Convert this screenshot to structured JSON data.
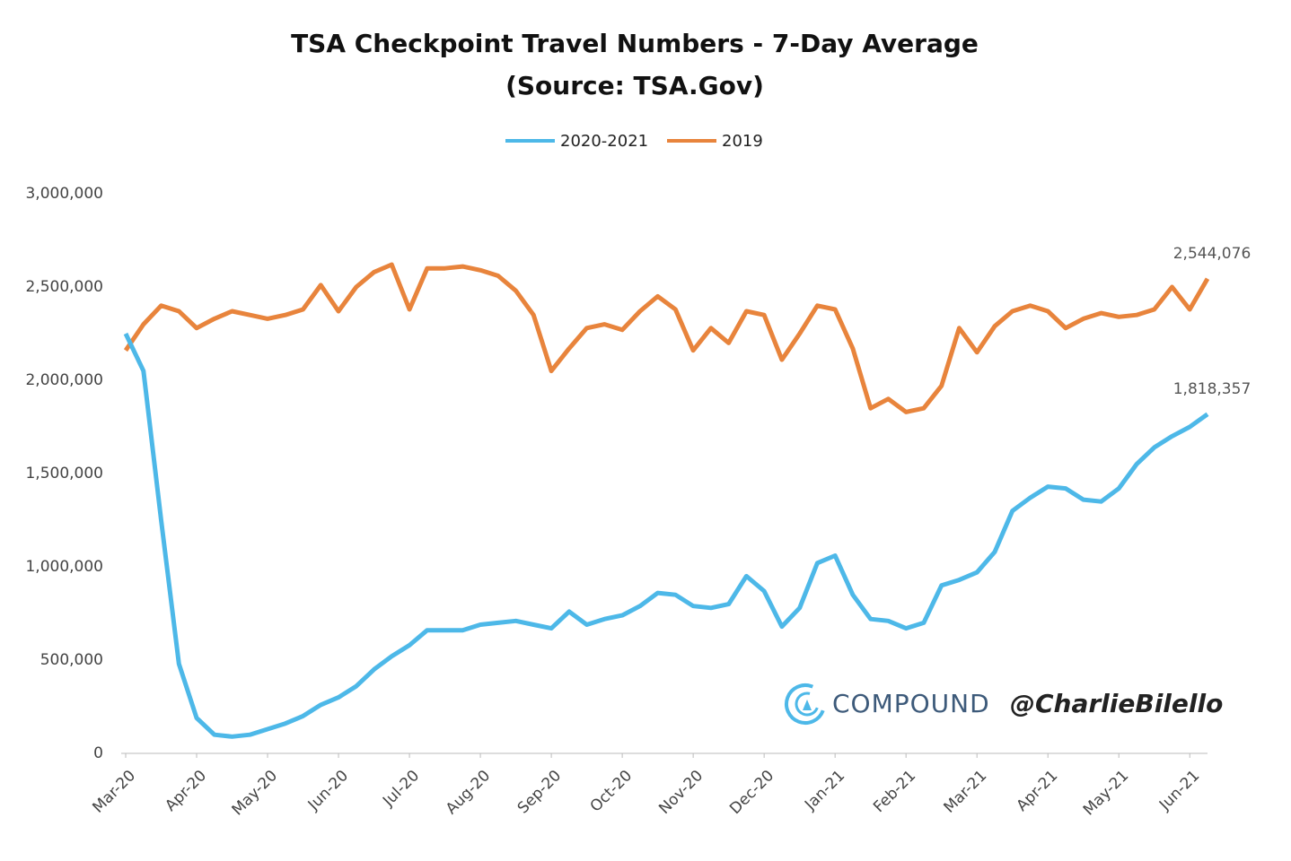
{
  "chart_data": {
    "type": "line",
    "title": [
      "TSA Checkpoint Travel Numbers - 7-Day Average",
      "(Source: TSA.Gov)"
    ],
    "categories": [
      "Mar-20",
      null,
      null,
      null,
      "Apr-20",
      null,
      null,
      null,
      "May-20",
      null,
      null,
      null,
      "Jun-20",
      null,
      null,
      null,
      "Jul-20",
      null,
      null,
      null,
      "Aug-20",
      null,
      null,
      null,
      "Sep-20",
      null,
      null,
      null,
      "Oct-20",
      null,
      null,
      null,
      "Nov-20",
      null,
      null,
      null,
      "Dec-20",
      null,
      null,
      null,
      "Jan-21",
      null,
      null,
      null,
      "Feb-21",
      null,
      null,
      null,
      "Mar-21",
      null,
      null,
      null,
      "Apr-21",
      null,
      null,
      null,
      "May-21",
      null,
      null,
      null,
      "Jun-21",
      null
    ],
    "series": [
      {
        "name": "2020-2021",
        "color": "#4db8e8",
        "values": [
          2250000,
          2050000,
          1250000,
          480000,
          190000,
          100000,
          90000,
          100000,
          130000,
          160000,
          200000,
          260000,
          300000,
          360000,
          450000,
          520000,
          580000,
          660000,
          660000,
          660000,
          690000,
          700000,
          710000,
          690000,
          670000,
          760000,
          690000,
          720000,
          740000,
          790000,
          860000,
          850000,
          790000,
          780000,
          800000,
          950000,
          870000,
          680000,
          780000,
          1020000,
          1060000,
          850000,
          720000,
          710000,
          670000,
          700000,
          900000,
          930000,
          970000,
          1080000,
          1300000,
          1370000,
          1430000,
          1420000,
          1360000,
          1350000,
          1420000,
          1550000,
          1640000,
          1700000,
          1750000,
          1818357
        ],
        "value_labels": [
          null,
          null,
          null,
          null,
          null,
          null,
          null,
          null,
          null,
          null,
          null,
          null,
          null,
          null,
          null,
          null,
          null,
          null,
          null,
          null,
          null,
          null,
          null,
          null,
          null,
          null,
          null,
          null,
          null,
          null,
          null,
          null,
          null,
          null,
          null,
          null,
          null,
          null,
          null,
          null,
          null,
          null,
          null,
          null,
          null,
          null,
          null,
          null,
          null,
          null,
          null,
          null,
          null,
          null,
          null,
          null,
          null,
          null,
          null,
          null,
          null,
          "1,818,357"
        ]
      },
      {
        "name": "2019",
        "color": "#e8843c",
        "values": [
          2160000,
          2300000,
          2400000,
          2370000,
          2280000,
          2330000,
          2370000,
          2350000,
          2330000,
          2350000,
          2380000,
          2510000,
          2370000,
          2500000,
          2580000,
          2620000,
          2380000,
          2600000,
          2600000,
          2610000,
          2590000,
          2560000,
          2480000,
          2350000,
          2050000,
          2170000,
          2280000,
          2300000,
          2270000,
          2370000,
          2450000,
          2380000,
          2160000,
          2280000,
          2200000,
          2370000,
          2350000,
          2110000,
          2250000,
          2400000,
          2380000,
          2170000,
          1850000,
          1900000,
          1830000,
          1850000,
          1970000,
          2280000,
          2150000,
          2290000,
          2370000,
          2400000,
          2370000,
          2280000,
          2330000,
          2360000,
          2340000,
          2350000,
          2380000,
          2500000,
          2380000,
          2544076
        ],
        "value_labels": [
          null,
          null,
          null,
          null,
          null,
          null,
          null,
          null,
          null,
          null,
          null,
          null,
          null,
          null,
          null,
          null,
          null,
          null,
          null,
          null,
          null,
          null,
          null,
          null,
          null,
          null,
          null,
          null,
          null,
          null,
          null,
          null,
          null,
          null,
          null,
          null,
          null,
          null,
          null,
          null,
          null,
          null,
          null,
          null,
          null,
          null,
          null,
          null,
          null,
          null,
          null,
          null,
          null,
          null,
          null,
          null,
          null,
          null,
          null,
          null,
          null,
          "2,544,076"
        ]
      }
    ],
    "ylim": [
      0,
      3000000
    ],
    "yticks": [
      0,
      {
        "value": 500000,
        "label": "500,000"
      },
      {
        "value": 1000000,
        "label": "1,000,000"
      },
      {
        "value": 1500000,
        "label": "1,500,000"
      },
      {
        "value": 2000000,
        "label": "2,000,000"
      },
      {
        "value": 2500000,
        "label": "2,500,000"
      },
      {
        "value": 3000000,
        "label": "3,000,000"
      }
    ],
    "grid": false,
    "legend": "top",
    "watermark": {
      "brand": "COMPOUND",
      "handle": "@CharlieBilello"
    }
  }
}
